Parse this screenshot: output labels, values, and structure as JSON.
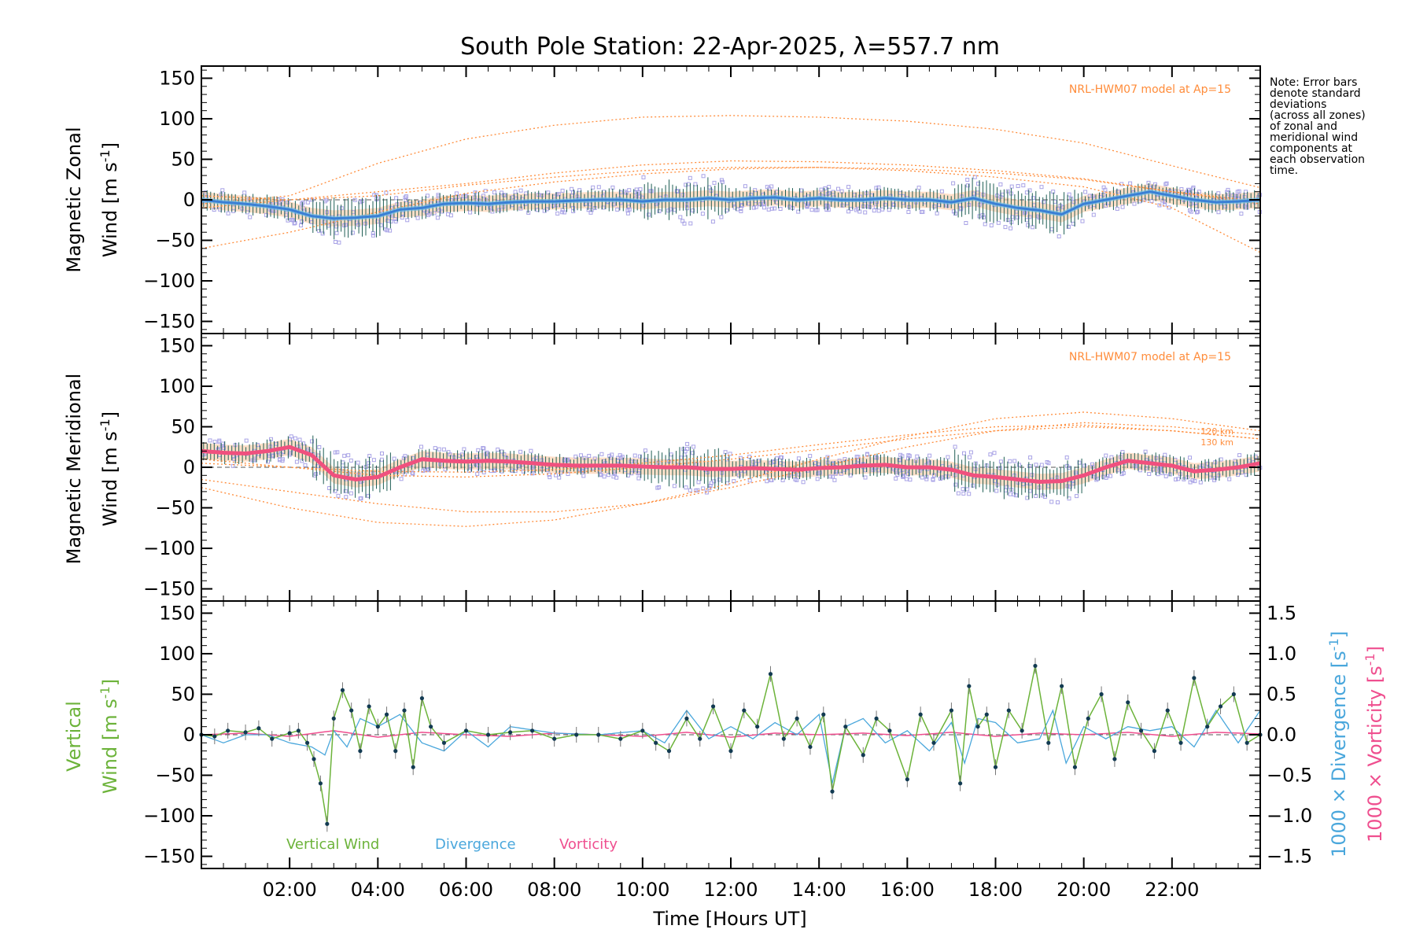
{
  "title": "South Pole Station: 22-Apr-2025, λ=557.7 nm",
  "note": [
    "Note: Error bars",
    "denote standard",
    "deviations",
    "(across all zones)",
    "of zonal and",
    "meridional wind",
    "components at",
    "each observation",
    "time."
  ],
  "x_axis": {
    "label": "Time [Hours UT]",
    "range": [
      0,
      24
    ],
    "tick_values": [
      2,
      4,
      6,
      8,
      10,
      12,
      14,
      16,
      18,
      20,
      22
    ],
    "tick_labels": [
      "02:00",
      "04:00",
      "06:00",
      "08:00",
      "10:00",
      "12:00",
      "14:00",
      "16:00",
      "18:00",
      "20:00",
      "22:00"
    ]
  },
  "colors": {
    "zonal_mean": "#3a7fd5",
    "zonal_mean_light": "#6fc0e8",
    "meridional_mean": "#f0507e",
    "zone_points": "#a9a3e6",
    "error_bars": "#1f5f55",
    "model": "#ff8c3a",
    "model_band": "#ffc9a3",
    "vertical": "#6cb33a",
    "vertical_points": "#123a52",
    "divergence": "#4aa7dc",
    "vorticity": "#ef4f8f",
    "frame": "#000000"
  },
  "chart_data": [
    {
      "type": "line",
      "panel": "zonal",
      "ylabel_line1": "Magnetic Zonal",
      "ylabel_line2": "Wind [m s",
      "ylabel_sup": "-1",
      "ylabel_close": "]",
      "ylim": [
        -165,
        165
      ],
      "y_ticks": [
        150,
        100,
        50,
        0,
        -50,
        -100,
        -150
      ],
      "y_tick_labels": [
        "150",
        "100",
        "50",
        "0",
        "−50",
        "−100",
        "−150"
      ],
      "model_label": "NRL-HWM07 model at Ap=15",
      "series": [
        {
          "name": "Mean zonal wind",
          "x": [
            0,
            0.5,
            1,
            1.5,
            2,
            2.5,
            3,
            3.5,
            4,
            4.5,
            5,
            5.5,
            6,
            6.5,
            7,
            7.5,
            8,
            8.5,
            9,
            9.5,
            10,
            10.5,
            11,
            11.5,
            12,
            12.5,
            13,
            13.5,
            14,
            14.5,
            15,
            15.5,
            16,
            16.5,
            17,
            17.5,
            18,
            18.5,
            19,
            19.5,
            20,
            20.5,
            21,
            21.5,
            22,
            22.5,
            23,
            23.5,
            24
          ],
          "values": [
            0,
            -3,
            -5,
            -8,
            -12,
            -20,
            -23,
            -22,
            -20,
            -12,
            -10,
            -5,
            -4,
            -5,
            -3,
            -2,
            -2,
            -1,
            0,
            0,
            -2,
            0,
            0,
            2,
            0,
            2,
            3,
            0,
            2,
            0,
            0,
            2,
            0,
            0,
            -3,
            2,
            -5,
            -10,
            -13,
            -18,
            -5,
            0,
            5,
            10,
            5,
            0,
            -3,
            -2,
            0
          ]
        },
        {
          "name": "NRL-HWM07 90 km",
          "x": [
            0,
            2,
            4,
            6,
            8,
            10,
            12,
            14,
            16,
            18,
            20,
            22,
            24
          ],
          "values": [
            -60,
            -40,
            -15,
            8,
            22,
            32,
            38,
            40,
            36,
            28,
            16,
            -10,
            -65
          ]
        },
        {
          "name": "NRL-HWM07 100 km",
          "x": [
            0,
            2,
            4,
            6,
            8,
            10,
            12,
            14,
            16,
            18,
            20,
            22,
            24
          ],
          "values": [
            -5,
            5,
            45,
            75,
            92,
            102,
            104,
            102,
            97,
            87,
            70,
            42,
            15
          ]
        },
        {
          "name": "NRL-HWM07 110 km",
          "x": [
            0,
            2,
            4,
            6,
            8,
            10,
            12,
            14,
            16,
            18,
            20,
            22,
            24
          ],
          "values": [
            -10,
            0,
            10,
            20,
            33,
            43,
            48,
            47,
            43,
            36,
            26,
            10,
            -2
          ]
        },
        {
          "name": "NRL-HWM07 120 km",
          "x": [
            0,
            2,
            4,
            6,
            8,
            10,
            12,
            14,
            16,
            18,
            20,
            22,
            24
          ],
          "values": [
            5,
            0,
            5,
            18,
            28,
            36,
            40,
            40,
            38,
            33,
            25,
            10,
            -5
          ]
        }
      ]
    },
    {
      "type": "line",
      "panel": "meridional",
      "ylabel_line1": "Magnetic Meridional",
      "ylabel_line2": "Wind [m s",
      "ylabel_sup": "-1",
      "ylabel_close": "]",
      "ylim": [
        -165,
        165
      ],
      "y_ticks": [
        150,
        100,
        50,
        0,
        -50,
        -100,
        -150
      ],
      "y_tick_labels": [
        "150",
        "100",
        "50",
        "0",
        "−50",
        "−100",
        "−150"
      ],
      "model_label": "NRL-HWM07 model at Ap=15",
      "height_labels": [
        "120 km",
        "130 km"
      ],
      "series": [
        {
          "name": "Mean meridional wind",
          "x": [
            0,
            0.5,
            1,
            1.5,
            2,
            2.5,
            3,
            3.5,
            4,
            4.5,
            5,
            5.5,
            6,
            6.5,
            7,
            7.5,
            8,
            8.5,
            9,
            9.5,
            10,
            10.5,
            11,
            11.5,
            12,
            12.5,
            13,
            13.5,
            14,
            14.5,
            15,
            15.5,
            16,
            16.5,
            17,
            17.5,
            18,
            18.5,
            19,
            19.5,
            20,
            20.5,
            21,
            21.5,
            22,
            22.5,
            23,
            23.5,
            24
          ],
          "values": [
            20,
            18,
            17,
            20,
            25,
            15,
            -10,
            -15,
            -12,
            0,
            10,
            8,
            7,
            8,
            7,
            5,
            3,
            2,
            2,
            2,
            1,
            0,
            0,
            -2,
            -2,
            -1,
            -2,
            -3,
            -1,
            0,
            2,
            3,
            0,
            0,
            -3,
            -10,
            -12,
            -15,
            -18,
            -17,
            -10,
            0,
            8,
            5,
            2,
            -5,
            -3,
            0,
            5
          ]
        },
        {
          "name": "NRL-HWM07 90 km",
          "x": [
            0,
            2,
            4,
            6,
            8,
            10,
            12,
            14,
            16,
            18,
            20,
            22,
            24
          ],
          "values": [
            -15,
            -30,
            -45,
            -55,
            -55,
            -45,
            -25,
            0,
            25,
            45,
            55,
            50,
            40
          ]
        },
        {
          "name": "NRL-HWM07 100 km",
          "x": [
            0,
            2,
            4,
            6,
            8,
            10,
            12,
            14,
            16,
            18,
            20,
            22,
            24
          ],
          "values": [
            -25,
            -50,
            -68,
            -73,
            -65,
            -45,
            -20,
            10,
            38,
            60,
            68,
            60,
            45
          ]
        },
        {
          "name": "NRL-HWM07 110 km",
          "x": [
            0,
            2,
            4,
            6,
            8,
            10,
            12,
            14,
            16,
            18,
            20,
            22,
            24
          ],
          "values": [
            10,
            0,
            -10,
            -12,
            -8,
            0,
            10,
            22,
            35,
            45,
            50,
            45,
            35
          ]
        },
        {
          "name": "NRL-HWM07 120 km",
          "x": [
            0,
            2,
            4,
            6,
            8,
            10,
            12,
            14,
            16,
            18,
            20,
            22,
            24
          ],
          "values": [
            5,
            0,
            -5,
            -6,
            -3,
            5,
            15,
            28,
            40,
            50,
            52,
            45,
            35
          ]
        }
      ]
    },
    {
      "type": "line",
      "panel": "vertical",
      "ylabel_line1": "Vertical",
      "ylabel_line2": "Wind [m s",
      "ylabel_sup": "-1",
      "ylabel_close": "]",
      "ylim": [
        -165,
        165
      ],
      "y_ticks": [
        150,
        100,
        50,
        0,
        -50,
        -100,
        -150
      ],
      "y_tick_labels": [
        "150",
        "100",
        "50",
        "0",
        "−50",
        "−100",
        "−150"
      ],
      "y2_label_div": "1000 × Divergence [s",
      "y2_label_vor": "1000 × Vorticity [s",
      "y2_sup": "-1",
      "y2_close": "]",
      "y2lim": [
        -1.65,
        1.65
      ],
      "y2_ticks": [
        1.5,
        1.0,
        0.5,
        0.0,
        -0.5,
        -1.0,
        -1.5
      ],
      "y2_tick_labels": [
        "1.5",
        "1.0",
        "0.5",
        "0.0",
        "−0.5",
        "−1.0",
        "−1.5"
      ],
      "legend": [
        {
          "name": "Vertical Wind",
          "color": "#6cb33a"
        },
        {
          "name": "Divergence",
          "color": "#4aa7dc"
        },
        {
          "name": "Vorticity",
          "color": "#ef4f8f"
        }
      ],
      "series": [
        {
          "name": "Vertical Wind",
          "x": [
            0,
            0.3,
            0.6,
            1,
            1.3,
            1.6,
            2,
            2.2,
            2.4,
            2.55,
            2.7,
            2.85,
            3,
            3.2,
            3.4,
            3.6,
            3.8,
            4,
            4.2,
            4.4,
            4.6,
            4.8,
            5,
            5.2,
            5.5,
            6,
            6.5,
            7,
            7.5,
            8,
            8.5,
            9,
            9.5,
            10,
            10.3,
            10.6,
            11,
            11.3,
            11.6,
            12,
            12.3,
            12.6,
            12.9,
            13.2,
            13.5,
            13.8,
            14.1,
            14.3,
            14.6,
            15,
            15.3,
            15.6,
            16,
            16.3,
            16.6,
            17,
            17.2,
            17.4,
            17.6,
            17.8,
            18,
            18.3,
            18.6,
            18.9,
            19.2,
            19.5,
            19.8,
            20.1,
            20.4,
            20.7,
            21,
            21.3,
            21.6,
            21.9,
            22.2,
            22.5,
            22.8,
            23.1,
            23.4,
            23.7,
            24
          ],
          "values": [
            0,
            -2,
            5,
            3,
            8,
            -5,
            2,
            5,
            -10,
            -30,
            -60,
            -110,
            20,
            55,
            30,
            -20,
            35,
            10,
            25,
            -20,
            30,
            -40,
            45,
            10,
            -10,
            5,
            0,
            3,
            5,
            -5,
            0,
            0,
            -5,
            5,
            -10,
            -20,
            20,
            -5,
            35,
            -20,
            30,
            10,
            75,
            -5,
            20,
            -15,
            25,
            -70,
            10,
            -25,
            20,
            5,
            -55,
            25,
            -10,
            30,
            -60,
            60,
            10,
            25,
            -40,
            30,
            5,
            85,
            -10,
            60,
            -40,
            20,
            50,
            -30,
            40,
            5,
            -20,
            30,
            -10,
            70,
            10,
            35,
            50,
            -10,
            0
          ]
        },
        {
          "name": "Divergence",
          "x": [
            0,
            0.5,
            1,
            1.5,
            2,
            2.5,
            2.8,
            3,
            3.3,
            3.6,
            4,
            4.5,
            5,
            5.5,
            6,
            6.5,
            7,
            8,
            9,
            10,
            10.5,
            11,
            11.5,
            12,
            12.5,
            13,
            13.5,
            14,
            14.3,
            14.6,
            15,
            15.5,
            16,
            16.5,
            17,
            17.3,
            17.6,
            18,
            18.5,
            19,
            19.3,
            19.6,
            20,
            20.5,
            21,
            21.5,
            22,
            22.5,
            23,
            23.5,
            24
          ],
          "values": [
            0,
            -0.1,
            0,
            0,
            -0.1,
            -0.15,
            -0.25,
            0.05,
            -0.15,
            0.2,
            0.1,
            0.25,
            -0.1,
            -0.2,
            0.05,
            -0.15,
            0.1,
            0.02,
            0,
            0.05,
            -0.1,
            0.3,
            -0.05,
            0.1,
            -0.05,
            0.15,
            0,
            0.25,
            -0.6,
            0.1,
            0.2,
            -0.1,
            0.05,
            -0.2,
            0.15,
            -0.35,
            0.2,
            0.15,
            -0.1,
            -0.05,
            0.3,
            -0.35,
            0.1,
            -0.05,
            0.1,
            0.05,
            0.1,
            -0.15,
            0.3,
            -0.1,
            0.3
          ]
        },
        {
          "name": "Vorticity",
          "x": [
            0,
            1,
            2,
            3,
            4,
            5,
            6,
            7,
            8,
            9,
            10,
            11,
            12,
            13,
            14,
            15,
            16,
            17,
            18,
            19,
            20,
            21,
            22,
            23,
            24
          ],
          "values": [
            0,
            0.02,
            -0.02,
            0.05,
            -0.03,
            0.03,
            0,
            -0.02,
            0.02,
            0,
            -0.02,
            0.03,
            -0.03,
            0.02,
            0,
            0.02,
            -0.01,
            0.03,
            -0.02,
            0.02,
            0,
            0.03,
            -0.02,
            0.03,
            0.01
          ]
        }
      ]
    }
  ]
}
